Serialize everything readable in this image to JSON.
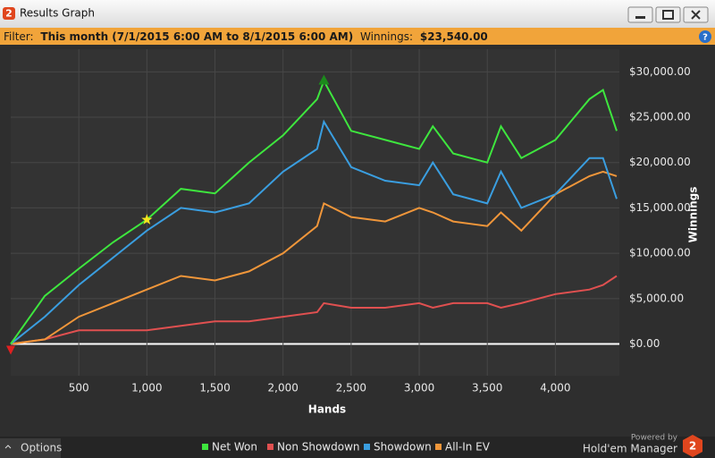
{
  "window": {
    "app_icon": "2",
    "title": "Results Graph",
    "help": "?"
  },
  "filter": {
    "label": "Filter:",
    "range": "This month (7/1/2015 6:00 AM to 8/1/2015 6:00 AM)",
    "winnings_label": "Winnings:",
    "winnings": "$23,540.00"
  },
  "chart_data": {
    "type": "line",
    "x_label": "Hands",
    "y_label": "Winnings",
    "x": [
      0,
      250,
      500,
      750,
      1000,
      1250,
      1500,
      1750,
      2000,
      2250,
      2300,
      2500,
      2750,
      3000,
      3100,
      3250,
      3500,
      3600,
      3750,
      4000,
      4250,
      4350,
      4450
    ],
    "series": [
      {
        "name": "Net Won",
        "color": "#3ee63e",
        "values": [
          0,
          5300,
          8300,
          11200,
          13700,
          17100,
          16600,
          20000,
          23000,
          27000,
          29000,
          23500,
          22500,
          21500,
          24000,
          21000,
          20000,
          24000,
          20500,
          22500,
          27000,
          28000,
          23500
        ]
      },
      {
        "name": "Non Showdown",
        "color": "#e05050",
        "values": [
          0,
          500,
          1500,
          1500,
          1500,
          2000,
          2500,
          2500,
          3000,
          3500,
          4500,
          4000,
          4000,
          4500,
          4000,
          4500,
          4500,
          4000,
          4500,
          5500,
          6000,
          6500,
          7500
        ]
      },
      {
        "name": "Showdown",
        "color": "#3a9ee0",
        "values": [
          0,
          3000,
          6500,
          9500,
          12500,
          15000,
          14500,
          15500,
          19000,
          21500,
          24500,
          19500,
          18000,
          17500,
          20000,
          16500,
          15500,
          19000,
          15000,
          16500,
          20500,
          20500,
          16000
        ]
      },
      {
        "name": "All-In EV",
        "color": "#f0963a",
        "values": [
          0,
          500,
          3000,
          4500,
          6000,
          7500,
          7000,
          8000,
          10000,
          13000,
          15500,
          14000,
          13500,
          15000,
          14500,
          13500,
          13000,
          14500,
          12500,
          16500,
          18500,
          19000,
          18500
        ]
      }
    ],
    "xlim": [
      0,
      4470
    ],
    "ylim": [
      -3500,
      32500
    ],
    "xticks": [
      500,
      {
        "value": 1000,
        "label": "1,000"
      },
      {
        "value": 1500,
        "label": "1,500"
      },
      {
        "value": 2000,
        "label": "2,000"
      },
      {
        "value": 2500,
        "label": "2,500"
      },
      {
        "value": 3000,
        "label": "3,000"
      },
      {
        "value": 3500,
        "label": "3,500"
      },
      {
        "value": 4000,
        "label": "4,000"
      }
    ],
    "yticks": [
      {
        "value": 0,
        "label": "$0.00"
      },
      {
        "value": 5000,
        "label": "$5,000.00"
      },
      {
        "value": 10000,
        "label": "$10,000.00"
      },
      {
        "value": 15000,
        "label": "$15,000.00"
      },
      {
        "value": 20000,
        "label": "$20,000.00"
      },
      {
        "value": 25000,
        "label": "$25,000.00"
      },
      {
        "value": 30000,
        "label": "$30,000.00"
      }
    ],
    "grid": true
  },
  "footer": {
    "options": "Options",
    "powered_by": "Powered by",
    "brand": "Hold'em Manager",
    "logo": "2"
  }
}
